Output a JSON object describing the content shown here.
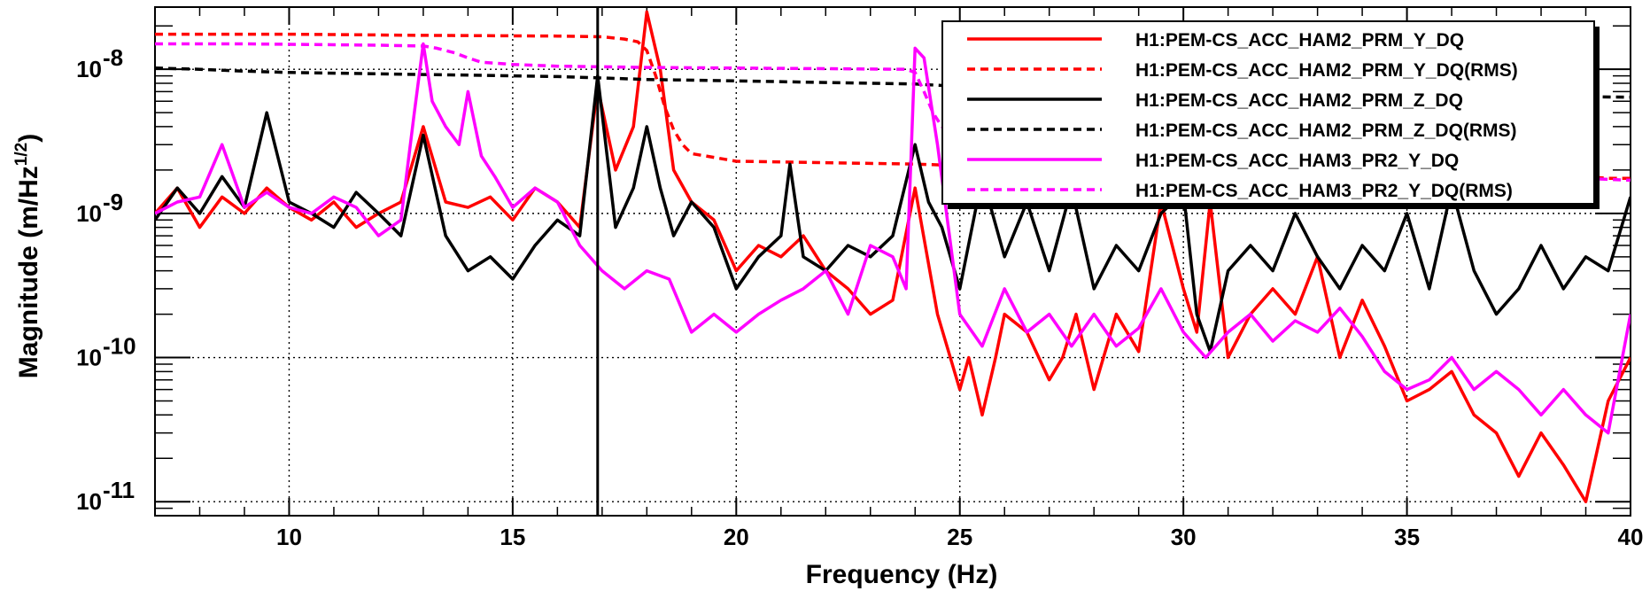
{
  "chart_data": {
    "type": "line",
    "xlabel": "Frequency (Hz)",
    "ylabel": "Magnitude (m/Hz",
    "ylabel_sup": "1/2",
    "ylabel_close": ")",
    "xlim": [
      7,
      40
    ],
    "ylim": [
      8e-12,
      2.7e-08
    ],
    "yscale": "log",
    "grid": true,
    "legend_position": "top-right",
    "x_ticks": [
      10,
      15,
      20,
      25,
      30,
      35,
      40
    ],
    "x_tick_labels": [
      "10",
      "15",
      "20",
      "25",
      "30",
      "35",
      "40"
    ],
    "y_ticks": [
      1e-11,
      1e-10,
      1e-09,
      1e-08
    ],
    "y_tick_labels": [
      {
        "base": "10",
        "exp": "-11"
      },
      {
        "base": "10",
        "exp": "-10"
      },
      {
        "base": "10",
        "exp": "-9"
      },
      {
        "base": "10",
        "exp": "-8"
      }
    ],
    "vline_x": 16.9,
    "series": [
      {
        "name": "H1:PEM-CS_ACC_HAM2_PRM_Y_DQ",
        "color": "#ff0000",
        "dash": "solid",
        "x": [
          7,
          7.5,
          8,
          8.5,
          9,
          9.5,
          10,
          10.5,
          11,
          11.5,
          12,
          12.5,
          13,
          13.5,
          14,
          14.5,
          15,
          15.5,
          16,
          16.5,
          16.9,
          17.3,
          17.7,
          18,
          18.3,
          18.6,
          19,
          19.5,
          20,
          20.5,
          21,
          21.5,
          22,
          22.5,
          23,
          23.5,
          24,
          24.5,
          25,
          25.2,
          25.5,
          25.8,
          26,
          26.5,
          27,
          27.3,
          27.6,
          28,
          28.5,
          29,
          29.5,
          30,
          30.3,
          30.6,
          31,
          31.5,
          32,
          32.5,
          33,
          33.5,
          34,
          34.5,
          35,
          35.5,
          36,
          36.5,
          37,
          37.5,
          38,
          38.5,
          39,
          39.5,
          40
        ],
        "y": [
          1e-09,
          1.5e-09,
          8e-10,
          1.3e-09,
          1e-09,
          1.5e-09,
          1.1e-09,
          9e-10,
          1.2e-09,
          8e-10,
          1e-09,
          1.2e-09,
          4e-09,
          1.2e-09,
          1.1e-09,
          1.3e-09,
          9e-10,
          1.5e-09,
          1.2e-09,
          8e-10,
          7.5e-09,
          2e-09,
          4e-09,
          2.5e-08,
          1e-08,
          2e-09,
          1.2e-09,
          9e-10,
          4e-10,
          6e-10,
          5e-10,
          7e-10,
          4e-10,
          3e-10,
          2e-10,
          2.5e-10,
          1.5e-09,
          2e-10,
          6e-11,
          1e-10,
          4e-11,
          1e-10,
          2e-10,
          1.5e-10,
          7e-11,
          1e-10,
          2e-10,
          6e-11,
          2e-10,
          1.1e-10,
          1.2e-09,
          3e-10,
          1.5e-10,
          1.2e-09,
          1e-10,
          2e-10,
          3e-10,
          2e-10,
          5e-10,
          1e-10,
          2.5e-10,
          1.2e-10,
          5e-11,
          6e-11,
          8e-11,
          4e-11,
          3e-11,
          1.5e-11,
          3e-11,
          1.8e-11,
          1e-11,
          5e-11,
          1e-10
        ]
      },
      {
        "name": "H1:PEM-CS_ACC_HAM2_PRM_Y_DQ(RMS)",
        "color": "#ff0000",
        "dash": "dashed",
        "x": [
          7,
          10,
          13,
          16,
          17,
          17.5,
          17.8,
          18,
          18.2,
          18.4,
          18.6,
          18.8,
          19,
          19.5,
          20,
          22,
          24,
          25,
          26,
          28,
          30,
          32,
          34,
          36,
          38,
          39,
          39.5,
          40
        ],
        "y": [
          1.75e-08,
          1.75e-08,
          1.72e-08,
          1.7e-08,
          1.68e-08,
          1.62e-08,
          1.55e-08,
          1.35e-08,
          9e-09,
          5.5e-09,
          3.8e-09,
          3e-09,
          2.6e-09,
          2.45e-09,
          2.3e-09,
          2.25e-09,
          2.2e-09,
          2.15e-09,
          2.1e-09,
          2.05e-09,
          2e-09,
          1.95e-09,
          1.9e-09,
          1.85e-09,
          1.8e-09,
          1.8e-09,
          1.75e-09,
          1.75e-09
        ]
      },
      {
        "name": "H1:PEM-CS_ACC_HAM2_PRM_Z_DQ",
        "color": "#000000",
        "dash": "solid",
        "x": [
          7,
          7.5,
          8,
          8.5,
          9,
          9.5,
          10,
          10.5,
          11,
          11.5,
          12,
          12.5,
          13,
          13.5,
          14,
          14.5,
          15,
          15.5,
          16,
          16.5,
          16.9,
          17.3,
          17.7,
          18,
          18.3,
          18.6,
          19,
          19.5,
          20,
          20.5,
          21,
          21.2,
          21.5,
          22,
          22.5,
          23,
          23.5,
          24,
          24.3,
          24.6,
          25,
          25.5,
          26,
          26.5,
          27,
          27.5,
          28,
          28.5,
          29,
          29.5,
          30,
          30.3,
          30.6,
          31,
          31.5,
          32,
          32.5,
          33,
          33.5,
          34,
          34.5,
          35,
          35.5,
          36,
          36.5,
          37,
          37.5,
          38,
          38.5,
          39,
          39.5,
          40
        ],
        "y": [
          9e-10,
          1.5e-09,
          1e-09,
          1.8e-09,
          1.1e-09,
          5e-09,
          1.2e-09,
          1e-09,
          8e-10,
          1.4e-09,
          1e-09,
          7e-10,
          3.5e-09,
          7e-10,
          4e-10,
          5e-10,
          3.5e-10,
          6e-10,
          9e-10,
          7e-10,
          9e-09,
          8e-10,
          1.5e-09,
          4e-09,
          1.5e-09,
          7e-10,
          1.2e-09,
          8e-10,
          3e-10,
          5e-10,
          7e-10,
          2.2e-09,
          5e-10,
          4e-10,
          6e-10,
          5e-10,
          7e-10,
          3e-09,
          1.2e-09,
          8e-10,
          3e-10,
          1.8e-09,
          5e-10,
          1.2e-09,
          4e-10,
          1.5e-09,
          3e-10,
          6e-10,
          4e-10,
          1e-09,
          1.4e-09,
          2e-10,
          1.1e-10,
          4e-10,
          6e-10,
          4e-10,
          1e-09,
          5e-10,
          3e-10,
          6e-10,
          4e-10,
          1e-09,
          3e-10,
          1.5e-09,
          4e-10,
          2e-10,
          3e-10,
          6e-10,
          3e-10,
          5e-10,
          4e-10,
          1.3e-09
        ]
      },
      {
        "name": "H1:PEM-CS_ACC_HAM2_PRM_Z_DQ(RMS)",
        "color": "#000000",
        "dash": "dashed",
        "x": [
          7,
          8,
          9,
          10,
          12,
          13,
          14,
          15,
          16,
          17,
          18,
          20,
          22,
          24,
          25,
          26,
          28,
          30,
          32,
          34,
          36,
          38,
          40
        ],
        "y": [
          1.02e-08,
          1e-08,
          9.7e-09,
          9.5e-09,
          9.3e-09,
          9.2e-09,
          9.1e-09,
          9e-09,
          8.9e-09,
          8.7e-09,
          8.5e-09,
          8.3e-09,
          8.1e-09,
          7.9e-09,
          7.6e-09,
          7.4e-09,
          7.2e-09,
          7e-09,
          6.9e-09,
          6.8e-09,
          6.6e-09,
          6.5e-09,
          6.4e-09
        ]
      },
      {
        "name": "H1:PEM-CS_ACC_HAM3_PR2_Y_DQ",
        "color": "#ff00ff",
        "dash": "solid",
        "x": [
          7,
          7.5,
          8,
          8.5,
          9,
          9.5,
          10,
          10.5,
          11,
          11.5,
          12,
          12.5,
          12.8,
          13,
          13.2,
          13.5,
          13.8,
          14,
          14.3,
          14.6,
          15,
          15.5,
          16,
          16.5,
          17,
          17.5,
          18,
          18.5,
          19,
          19.5,
          20,
          20.5,
          21,
          21.5,
          22,
          22.5,
          23,
          23.5,
          23.8,
          24,
          24.2,
          24.5,
          25,
          25.5,
          26,
          26.5,
          27,
          27.5,
          28,
          28.5,
          29,
          29.5,
          30,
          30.5,
          31,
          31.5,
          32,
          32.5,
          33,
          33.5,
          34,
          34.5,
          35,
          35.5,
          36,
          36.5,
          37,
          37.5,
          38,
          38.5,
          39,
          39.5,
          40
        ],
        "y": [
          1e-09,
          1.2e-09,
          1.3e-09,
          3e-09,
          1.1e-09,
          1.4e-09,
          1.1e-09,
          1e-09,
          1.3e-09,
          1.1e-09,
          7e-10,
          9e-10,
          5e-09,
          1.5e-08,
          6e-09,
          4e-09,
          3e-09,
          7e-09,
          2.5e-09,
          1.8e-09,
          1.1e-09,
          1.5e-09,
          1.2e-09,
          6e-10,
          4e-10,
          3e-10,
          4e-10,
          3.5e-10,
          1.5e-10,
          2e-10,
          1.5e-10,
          2e-10,
          2.5e-10,
          3e-10,
          4e-10,
          2e-10,
          6e-10,
          5e-10,
          3e-10,
          1.4e-08,
          1.2e-08,
          3e-09,
          2e-10,
          1.2e-10,
          3e-10,
          1.5e-10,
          2e-10,
          1.2e-10,
          2e-10,
          1.2e-10,
          1.6e-10,
          3e-10,
          1.5e-10,
          1e-10,
          1.5e-10,
          2e-10,
          1.3e-10,
          1.8e-10,
          1.5e-10,
          2.2e-10,
          1.4e-10,
          8e-11,
          6e-11,
          7e-11,
          1e-10,
          6e-11,
          8e-11,
          6e-11,
          4e-11,
          6e-11,
          4e-11,
          3e-11,
          2e-10
        ]
      },
      {
        "name": "H1:PEM-CS_ACC_HAM3_PR2_Y_DQ(RMS)",
        "color": "#ff00ff",
        "dash": "dashed",
        "x": [
          7,
          9,
          11,
          12,
          13,
          13.3,
          13.7,
          14,
          14.3,
          15,
          16,
          18,
          20,
          22,
          23.8,
          24,
          24.2,
          24.4,
          24.6,
          24.8,
          25,
          26,
          28,
          30,
          32,
          34,
          36,
          38,
          40
        ],
        "y": [
          1.5e-08,
          1.5e-08,
          1.48e-08,
          1.47e-08,
          1.45e-08,
          1.4e-08,
          1.3e-08,
          1.2e-08,
          1.12e-08,
          1.08e-08,
          1.05e-08,
          1.03e-08,
          1.02e-08,
          1.01e-08,
          1e-08,
          9.5e-09,
          7e-09,
          5e-09,
          4e-09,
          3.5e-09,
          3.2e-09,
          2.8e-09,
          2.5e-09,
          2.3e-09,
          2.1e-09,
          2e-09,
          1.9e-09,
          1.8e-09,
          1.7e-09
        ]
      }
    ]
  }
}
